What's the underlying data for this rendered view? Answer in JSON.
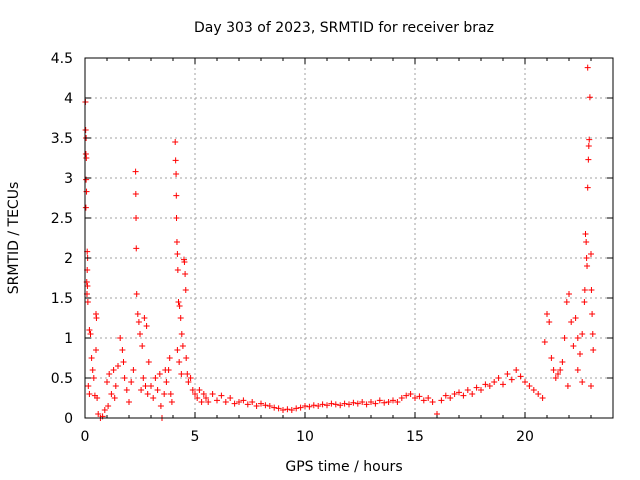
{
  "chart_data": {
    "type": "scatter",
    "title": "Day 303 of 2023, SRMTID for receiver braz",
    "xlabel": "GPS time / hours",
    "ylabel": "SRMTID / TECUs",
    "xlim": [
      0,
      24
    ],
    "ylim": [
      0,
      4.5
    ],
    "x_ticks": [
      0,
      5,
      10,
      15,
      20
    ],
    "y_ticks": [
      0,
      0.5,
      1,
      1.5,
      2,
      2.5,
      3,
      3.5,
      4,
      4.5
    ],
    "x_tick_labels": [
      "0",
      "5",
      "10",
      "15",
      "20"
    ],
    "y_tick_labels": [
      "0",
      "0.5",
      "1",
      "1.5",
      "2",
      "2.5",
      "3",
      "3.5",
      "4",
      "4.5"
    ],
    "grid": true,
    "marker": "+",
    "colors": {
      "series": "#ff0000",
      "grid": "#a0a0a0",
      "axis": "#000000"
    },
    "points": [
      [
        0.02,
        3.95
      ],
      [
        0.03,
        3.6
      ],
      [
        0.05,
        3.5
      ],
      [
        0.04,
        3.3
      ],
      [
        0.06,
        3.25
      ],
      [
        0.05,
        2.98
      ],
      [
        0.07,
        2.83
      ],
      [
        0.04,
        2.63
      ],
      [
        0.1,
        2.08
      ],
      [
        0.12,
        2.0
      ],
      [
        0.1,
        1.85
      ],
      [
        0.08,
        1.7
      ],
      [
        0.11,
        1.65
      ],
      [
        0.09,
        1.55
      ],
      [
        0.13,
        1.45
      ],
      [
        0.2,
        1.1
      ],
      [
        0.25,
        1.05
      ],
      [
        0.3,
        0.75
      ],
      [
        0.35,
        0.6
      ],
      [
        0.15,
        0.4
      ],
      [
        0.2,
        0.3
      ],
      [
        0.4,
        0.5
      ],
      [
        0.45,
        0.28
      ],
      [
        0.5,
        1.3
      ],
      [
        0.52,
        1.25
      ],
      [
        0.55,
        0.25
      ],
      [
        0.6,
        0.05
      ],
      [
        0.7,
        0.0
      ],
      [
        0.8,
        0.02
      ],
      [
        0.9,
        0.1
      ],
      [
        0.5,
        0.85
      ],
      [
        1.0,
        0.45
      ],
      [
        1.1,
        0.55
      ],
      [
        1.2,
        0.3
      ],
      [
        1.3,
        0.6
      ],
      [
        1.4,
        0.4
      ],
      [
        1.5,
        0.65
      ],
      [
        1.6,
        1.0
      ],
      [
        1.7,
        0.85
      ],
      [
        1.8,
        0.5
      ],
      [
        1.9,
        0.35
      ],
      [
        2.0,
        0.2
      ],
      [
        2.1,
        0.45
      ],
      [
        2.2,
        0.6
      ],
      [
        1.05,
        0.15
      ],
      [
        1.35,
        0.25
      ],
      [
        1.75,
        0.7
      ],
      [
        2.3,
        3.08
      ],
      [
        2.31,
        2.8
      ],
      [
        2.32,
        2.5
      ],
      [
        2.33,
        2.12
      ],
      [
        2.35,
        1.55
      ],
      [
        2.4,
        1.3
      ],
      [
        2.45,
        1.2
      ],
      [
        2.5,
        1.05
      ],
      [
        2.6,
        0.9
      ],
      [
        2.7,
        1.25
      ],
      [
        2.8,
        1.15
      ],
      [
        2.9,
        0.7
      ],
      [
        2.55,
        0.35
      ],
      [
        2.65,
        0.5
      ],
      [
        2.75,
        0.4
      ],
      [
        2.85,
        0.3
      ],
      [
        3.0,
        0.4
      ],
      [
        3.1,
        0.25
      ],
      [
        3.2,
        0.5
      ],
      [
        3.3,
        0.35
      ],
      [
        3.4,
        0.55
      ],
      [
        3.5,
        0.0
      ],
      [
        3.6,
        0.3
      ],
      [
        3.7,
        0.45
      ],
      [
        3.8,
        0.6
      ],
      [
        3.9,
        0.3
      ],
      [
        3.95,
        0.2
      ],
      [
        3.45,
        0.15
      ],
      [
        3.65,
        0.6
      ],
      [
        3.85,
        0.75
      ],
      [
        4.1,
        3.45
      ],
      [
        4.12,
        3.22
      ],
      [
        4.14,
        3.05
      ],
      [
        4.15,
        2.78
      ],
      [
        4.16,
        2.5
      ],
      [
        4.18,
        2.2
      ],
      [
        4.2,
        2.05
      ],
      [
        4.22,
        1.85
      ],
      [
        4.25,
        1.45
      ],
      [
        4.3,
        1.4
      ],
      [
        4.35,
        1.25
      ],
      [
        4.4,
        1.05
      ],
      [
        4.45,
        0.9
      ],
      [
        4.2,
        0.85
      ],
      [
        4.28,
        0.7
      ],
      [
        4.38,
        0.55
      ],
      [
        4.5,
        1.98
      ],
      [
        4.52,
        1.95
      ],
      [
        4.55,
        1.8
      ],
      [
        4.58,
        1.6
      ],
      [
        4.6,
        0.75
      ],
      [
        4.65,
        0.55
      ],
      [
        4.7,
        0.45
      ],
      [
        4.8,
        0.5
      ],
      [
        4.9,
        0.35
      ],
      [
        5.0,
        0.3
      ],
      [
        5.1,
        0.25
      ],
      [
        5.2,
        0.35
      ],
      [
        5.3,
        0.2
      ],
      [
        5.4,
        0.3
      ],
      [
        5.5,
        0.25
      ],
      [
        5.6,
        0.2
      ],
      [
        5.8,
        0.3
      ],
      [
        6.0,
        0.22
      ],
      [
        6.2,
        0.28
      ],
      [
        6.4,
        0.2
      ],
      [
        6.6,
        0.25
      ],
      [
        6.8,
        0.18
      ],
      [
        7.0,
        0.2
      ],
      [
        7.2,
        0.22
      ],
      [
        7.4,
        0.17
      ],
      [
        7.6,
        0.2
      ],
      [
        7.8,
        0.15
      ],
      [
        8.0,
        0.18
      ],
      [
        8.2,
        0.16
      ],
      [
        8.4,
        0.15
      ],
      [
        8.6,
        0.13
      ],
      [
        8.8,
        0.12
      ],
      [
        9.0,
        0.1
      ],
      [
        9.2,
        0.11
      ],
      [
        9.4,
        0.1
      ],
      [
        9.6,
        0.12
      ],
      [
        9.8,
        0.13
      ],
      [
        10.0,
        0.15
      ],
      [
        10.2,
        0.14
      ],
      [
        10.4,
        0.16
      ],
      [
        10.6,
        0.15
      ],
      [
        10.8,
        0.17
      ],
      [
        11.0,
        0.16
      ],
      [
        11.2,
        0.18
      ],
      [
        11.4,
        0.17
      ],
      [
        11.6,
        0.16
      ],
      [
        11.8,
        0.18
      ],
      [
        12.0,
        0.17
      ],
      [
        12.2,
        0.19
      ],
      [
        12.4,
        0.18
      ],
      [
        12.6,
        0.2
      ],
      [
        12.8,
        0.17
      ],
      [
        13.0,
        0.2
      ],
      [
        13.2,
        0.18
      ],
      [
        13.4,
        0.22
      ],
      [
        13.6,
        0.19
      ],
      [
        13.8,
        0.2
      ],
      [
        14.0,
        0.22
      ],
      [
        14.2,
        0.2
      ],
      [
        14.4,
        0.25
      ],
      [
        14.6,
        0.28
      ],
      [
        14.8,
        0.3
      ],
      [
        15.0,
        0.25
      ],
      [
        15.2,
        0.27
      ],
      [
        15.4,
        0.22
      ],
      [
        15.6,
        0.25
      ],
      [
        15.8,
        0.2
      ],
      [
        16.0,
        0.05
      ],
      [
        16.2,
        0.22
      ],
      [
        16.4,
        0.28
      ],
      [
        16.6,
        0.25
      ],
      [
        16.8,
        0.3
      ],
      [
        17.0,
        0.32
      ],
      [
        17.2,
        0.28
      ],
      [
        17.4,
        0.35
      ],
      [
        17.6,
        0.3
      ],
      [
        17.8,
        0.38
      ],
      [
        18.0,
        0.35
      ],
      [
        18.2,
        0.42
      ],
      [
        18.4,
        0.4
      ],
      [
        18.6,
        0.45
      ],
      [
        18.8,
        0.5
      ],
      [
        19.0,
        0.42
      ],
      [
        19.2,
        0.55
      ],
      [
        19.4,
        0.48
      ],
      [
        19.6,
        0.6
      ],
      [
        19.8,
        0.52
      ],
      [
        20.0,
        0.45
      ],
      [
        20.2,
        0.4
      ],
      [
        20.4,
        0.35
      ],
      [
        20.6,
        0.3
      ],
      [
        20.8,
        0.25
      ],
      [
        20.9,
        0.95
      ],
      [
        21.0,
        1.3
      ],
      [
        21.1,
        1.2
      ],
      [
        21.2,
        0.75
      ],
      [
        21.3,
        0.6
      ],
      [
        21.4,
        0.5
      ],
      [
        21.5,
        0.55
      ],
      [
        21.6,
        0.6
      ],
      [
        21.7,
        0.7
      ],
      [
        21.8,
        1.0
      ],
      [
        21.9,
        1.45
      ],
      [
        22.0,
        1.55
      ],
      [
        22.1,
        1.2
      ],
      [
        22.2,
        0.9
      ],
      [
        22.3,
        1.25
      ],
      [
        22.4,
        1.0
      ],
      [
        22.5,
        0.8
      ],
      [
        22.6,
        1.05
      ],
      [
        22.7,
        1.45
      ],
      [
        22.72,
        1.6
      ],
      [
        22.75,
        2.3
      ],
      [
        22.78,
        2.2
      ],
      [
        22.8,
        2.0
      ],
      [
        22.82,
        1.9
      ],
      [
        22.85,
        2.88
      ],
      [
        22.88,
        3.23
      ],
      [
        22.9,
        3.4
      ],
      [
        22.92,
        3.48
      ],
      [
        22.95,
        4.01
      ],
      [
        22.85,
        4.38
      ],
      [
        23.0,
        2.05
      ],
      [
        23.02,
        1.6
      ],
      [
        23.05,
        1.3
      ],
      [
        23.08,
        1.05
      ],
      [
        23.1,
        0.85
      ],
      [
        23.0,
        0.4
      ],
      [
        22.6,
        0.45
      ],
      [
        22.4,
        0.6
      ],
      [
        21.95,
        0.4
      ]
    ]
  }
}
